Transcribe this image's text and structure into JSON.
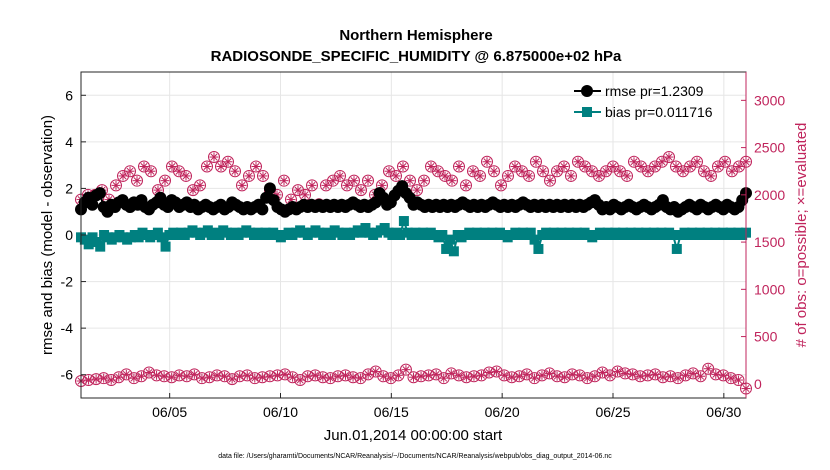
{
  "chart_data": {
    "type": "line",
    "title": "Northern Hemisphere",
    "subtitle": "RADIOSONDE_SPECIFIC_HUMIDITY @ 6.875000e+02 hPa",
    "xlabel": "Jun.01,2014 00:00:00 start",
    "ylabel_left": "rmse and bias (model - observation)",
    "ylabel_right": "# of obs: o=possible; ×=evaluated",
    "x_ticks": [
      "06/05",
      "06/10",
      "06/15",
      "06/20",
      "06/25",
      "06/30"
    ],
    "x_tick_days": [
      5,
      10,
      15,
      20,
      25,
      30
    ],
    "xlim": [
      1,
      31
    ],
    "ylim_left": [
      -7,
      7
    ],
    "ylim_right": [
      -150,
      3300
    ],
    "y_ticks_left": [
      "6",
      "4",
      "2",
      "0",
      "-2",
      "-4",
      "-6"
    ],
    "y_tick_values_left": [
      6,
      4,
      2,
      0,
      -2,
      -4,
      -6
    ],
    "y_ticks_right": [
      "3000",
      "2500",
      "2000",
      "1500",
      "1000",
      "500",
      "0"
    ],
    "y_tick_values_right": [
      3000,
      2500,
      2000,
      1500,
      1000,
      500,
      0
    ],
    "grid": true,
    "legend": {
      "position": "top-right",
      "entries": [
        {
          "label": "rmse pr=1.2309",
          "color": "#000000"
        },
        {
          "label": "bias pr=0.011716",
          "color": "#008080"
        }
      ]
    },
    "series": [
      {
        "name": "rmse",
        "color": "#000000",
        "values": [
          1.1,
          1.4,
          1.6,
          1.3,
          1.7,
          1.8,
          1.2,
          1.0,
          1.3,
          1.2,
          1.4,
          1.5,
          1.3,
          1.2,
          1.4,
          1.3,
          1.5,
          1.2,
          1.1,
          1.3,
          1.4,
          1.6,
          1.3,
          1.2,
          1.5,
          1.4,
          1.2,
          1.3,
          1.4,
          1.2,
          1.3,
          1.1,
          1.2,
          1.3,
          1.2,
          1.1,
          1.2,
          1.3,
          1.1,
          1.2,
          1.4,
          1.3,
          1.2,
          1.1,
          1.2,
          1.1,
          1.2,
          1.3,
          1.1,
          1.6,
          2.0,
          1.5,
          1.2,
          1.1,
          1.0,
          1.1,
          1.2,
          1.1,
          1.2,
          1.3,
          1.2,
          1.3,
          1.2,
          1.3,
          1.2,
          1.3,
          1.2,
          1.3,
          1.2,
          1.3,
          1.2,
          1.3,
          1.4,
          1.3,
          1.2,
          1.3,
          1.2,
          1.3,
          1.4,
          1.8,
          1.6,
          1.3,
          1.4,
          1.7,
          1.9,
          2.1,
          1.8,
          1.6,
          1.3,
          1.4,
          1.3,
          1.2,
          1.3,
          1.2,
          1.3,
          1.2,
          1.3,
          1.2,
          1.3,
          1.2,
          1.3,
          1.4,
          1.3,
          1.2,
          1.3,
          1.2,
          1.3,
          1.2,
          1.3,
          1.4,
          1.3,
          1.2,
          1.3,
          1.2,
          1.3,
          1.2,
          1.3,
          1.4,
          1.3,
          1.2,
          1.3,
          1.2,
          1.3,
          1.2,
          1.3,
          1.2,
          1.3,
          1.2,
          1.3,
          1.2,
          1.3,
          1.2,
          1.3,
          1.2,
          1.3,
          1.4,
          1.5,
          1.3,
          1.1,
          1.2,
          1.1,
          1.3,
          1.2,
          1.1,
          1.2,
          1.3,
          1.2,
          1.1,
          1.2,
          1.3,
          1.2,
          1.1,
          1.2,
          1.3,
          1.5,
          1.2,
          1.1,
          1.2,
          1.0,
          1.1,
          1.2,
          1.3,
          1.2,
          1.1,
          1.3,
          1.2,
          1.1,
          1.2,
          1.3,
          1.2,
          1.1,
          1.3,
          1.2,
          1.1,
          1.2,
          1.5,
          1.8
        ]
      },
      {
        "name": "bias",
        "color": "#008080",
        "values": [
          -0.1,
          -0.2,
          -0.4,
          -0.1,
          -0.3,
          -0.5,
          0.0,
          -0.1,
          -0.2,
          -0.1,
          0.0,
          -0.1,
          -0.2,
          -0.1,
          0.0,
          -0.1,
          0.1,
          0.0,
          -0.1,
          0.0,
          0.1,
          -0.1,
          -0.5,
          0.0,
          0.1,
          0.0,
          0.1,
          0.0,
          0.1,
          0.2,
          0.1,
          0.0,
          0.1,
          0.2,
          0.0,
          0.1,
          0.0,
          0.2,
          0.1,
          0.0,
          0.1,
          0.0,
          0.1,
          0.2,
          0.1,
          0.0,
          0.1,
          0.0,
          0.1,
          0.0,
          0.1,
          0.0,
          -0.1,
          0.0,
          0.1,
          0.0,
          0.1,
          0.2,
          0.1,
          0.0,
          0.1,
          0.2,
          0.1,
          0.0,
          0.1,
          0.0,
          0.2,
          0.1,
          0.0,
          0.1,
          0.0,
          0.1,
          0.2,
          0.1,
          0.3,
          0.1,
          0.0,
          0.1,
          0.2,
          0.3,
          0.1,
          0.0,
          0.1,
          0.0,
          0.6,
          0.1,
          0.0,
          0.1,
          0.0,
          0.1,
          0.0,
          0.1,
          0.0,
          -0.1,
          0.0,
          -0.6,
          -0.2,
          -0.7,
          0.0,
          -0.1,
          0.0,
          0.1,
          0.0,
          0.1,
          0.0,
          0.1,
          0.0,
          0.1,
          0.0,
          0.1,
          0.0,
          -0.1,
          0.0,
          0.1,
          0.0,
          0.1,
          0.0,
          0.1,
          -0.2,
          -0.6,
          0.0,
          0.1,
          0.0,
          0.1,
          0.0,
          0.1,
          0.0,
          0.1,
          0.0,
          0.1,
          0.0,
          0.1,
          0.0,
          -0.1,
          0.0,
          0.1,
          0.0,
          0.1,
          0.0,
          0.1,
          0.0,
          0.1,
          0.0,
          0.1,
          0.0,
          0.1,
          0.0,
          0.1,
          0.0,
          0.1,
          0.0,
          0.1,
          0.0,
          0.1,
          0.0,
          -0.6,
          0.0,
          0.1,
          0.0,
          0.1,
          0.0,
          0.1,
          0.0,
          0.1,
          0.0,
          0.1,
          0.0,
          0.1,
          0.0,
          0.1,
          0.0,
          0.1,
          0.0,
          0.1
        ]
      },
      {
        "name": "obs possible/evaluated (upper)",
        "axis": "right",
        "color": "#c0245c",
        "values": [
          1950,
          2000,
          2000,
          2050,
          1950,
          2100,
          2200,
          2250,
          2150,
          2300,
          2250,
          2050,
          2150,
          2300,
          2250,
          2200,
          2050,
          2100,
          2300,
          2400,
          2300,
          2350,
          2250,
          2100,
          2200,
          2300,
          2200,
          2050,
          2000,
          2150,
          1950,
          2050,
          2000,
          2100,
          1900,
          2100,
          2150,
          2200,
          2100,
          2150,
          2050,
          2150,
          2000,
          2100,
          2250,
          2200,
          2300,
          2150,
          2050,
          2150,
          2300,
          2250,
          2200,
          2150,
          2300,
          2100,
          2250,
          2200,
          2350,
          2250,
          2100,
          2200,
          2300,
          2250,
          2200,
          2350,
          2250,
          2150,
          2250,
          2300,
          2200,
          2350,
          2300,
          2250,
          2200,
          2250,
          2300,
          2250,
          2200,
          2350,
          2300,
          2250,
          2300,
          2350,
          2400,
          2300,
          2250,
          2300,
          2350,
          2250,
          2200,
          2300,
          2350,
          2250,
          2300,
          2350
        ]
      },
      {
        "name": "obs possible/evaluated (lower)",
        "axis": "right",
        "color": "#c0245c",
        "values": [
          30,
          40,
          50,
          60,
          40,
          70,
          100,
          60,
          80,
          120,
          90,
          80,
          70,
          90,
          80,
          100,
          60,
          70,
          90,
          80,
          50,
          80,
          90,
          60,
          70,
          80,
          90,
          100,
          70,
          40,
          80,
          90,
          70,
          60,
          80,
          90,
          70,
          60,
          100,
          130,
          80,
          60,
          90,
          150,
          70,
          80,
          90,
          100,
          60,
          110,
          90,
          70,
          80,
          90,
          120,
          130,
          90,
          70,
          80,
          100,
          60,
          90,
          110,
          80,
          70,
          100,
          90,
          60,
          80,
          120,
          90,
          130,
          110,
          100,
          80,
          90,
          100,
          70,
          80,
          60,
          90,
          110,
          80,
          160,
          100,
          90,
          60,
          40,
          -50
        ]
      }
    ]
  },
  "footnote": "data file: /Users/gharamti/Documents/NCAR/Reanalysis/~/Documents/NCAR/Reanalysis/webpub/obs_diag_output_2014-06.nc"
}
